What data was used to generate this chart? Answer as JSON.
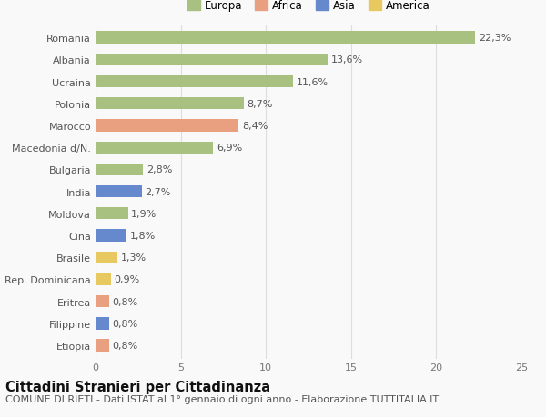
{
  "categories": [
    "Romania",
    "Albania",
    "Ucraina",
    "Polonia",
    "Marocco",
    "Macedonia d/N.",
    "Bulgaria",
    "India",
    "Moldova",
    "Cina",
    "Brasile",
    "Rep. Dominicana",
    "Eritrea",
    "Filippine",
    "Etiopia"
  ],
  "values": [
    22.3,
    13.6,
    11.6,
    8.7,
    8.4,
    6.9,
    2.8,
    2.7,
    1.9,
    1.8,
    1.3,
    0.9,
    0.8,
    0.8,
    0.8
  ],
  "labels": [
    "22,3%",
    "13,6%",
    "11,6%",
    "8,7%",
    "8,4%",
    "6,9%",
    "2,8%",
    "2,7%",
    "1,9%",
    "1,8%",
    "1,3%",
    "0,9%",
    "0,8%",
    "0,8%",
    "0,8%"
  ],
  "continents": [
    "Europa",
    "Europa",
    "Europa",
    "Europa",
    "Africa",
    "Europa",
    "Europa",
    "Asia",
    "Europa",
    "Asia",
    "America",
    "America",
    "Africa",
    "Asia",
    "Africa"
  ],
  "colors": {
    "Europa": "#a8c080",
    "Africa": "#e8a080",
    "Asia": "#6688cc",
    "America": "#e8c860"
  },
  "xlim": [
    0,
    25
  ],
  "xticks": [
    0,
    5,
    10,
    15,
    20,
    25
  ],
  "title": "Cittadini Stranieri per Cittadinanza",
  "subtitle": "COMUNE DI RIETI - Dati ISTAT al 1° gennaio di ogni anno - Elaborazione TUTTITALIA.IT",
  "background_color": "#f9f9f9",
  "grid_color": "#dddddd",
  "bar_height": 0.55,
  "title_fontsize": 10.5,
  "subtitle_fontsize": 8,
  "label_fontsize": 8,
  "tick_fontsize": 8,
  "legend_fontsize": 8.5
}
